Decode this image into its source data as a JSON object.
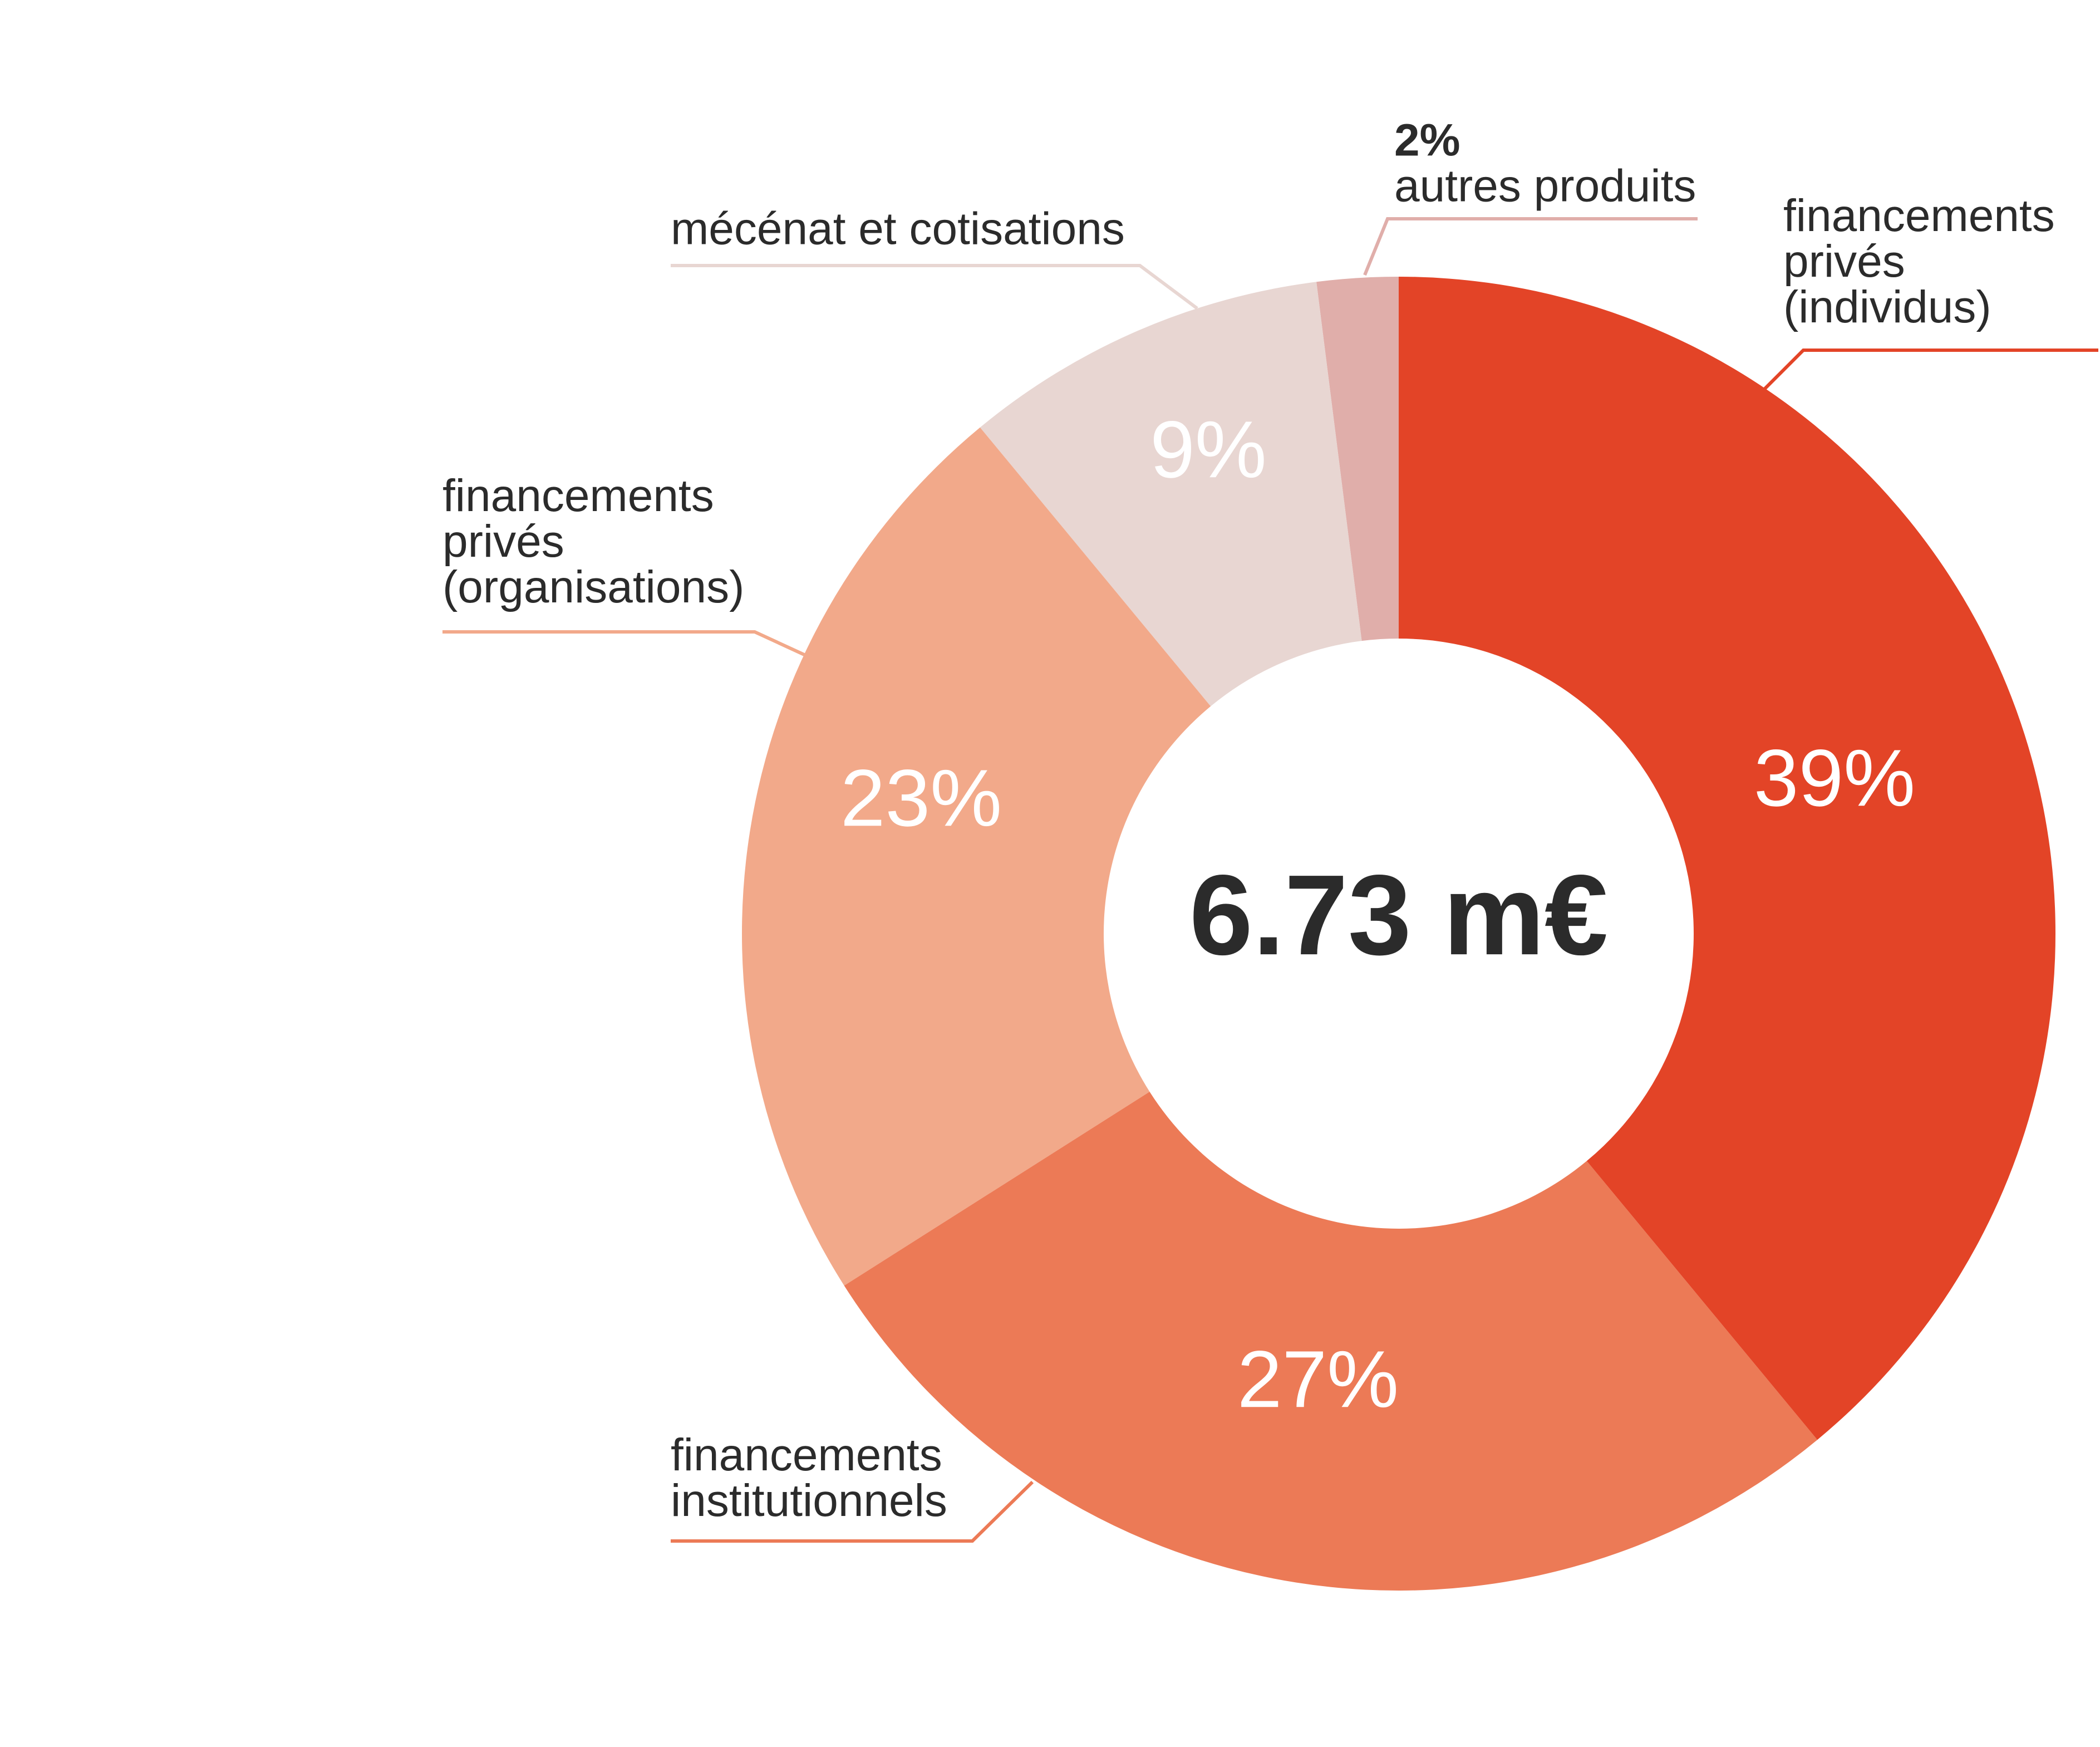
{
  "chart_data": {
    "type": "donut",
    "center_label": "6.73 m€",
    "categories": [
      "financements privés (individus)",
      "financements institutionnels",
      "financements privés (organisations)",
      "mécénat et cotisations",
      "autres produits"
    ],
    "values": [
      39,
      27,
      23,
      9,
      2
    ],
    "value_labels": [
      "39%",
      "27%",
      "23%",
      "9%",
      "2%"
    ],
    "colors": [
      "#e34427",
      "#ec7a56",
      "#f2a98a",
      "#e8d6d2",
      "#e0aeaa"
    ]
  }
}
